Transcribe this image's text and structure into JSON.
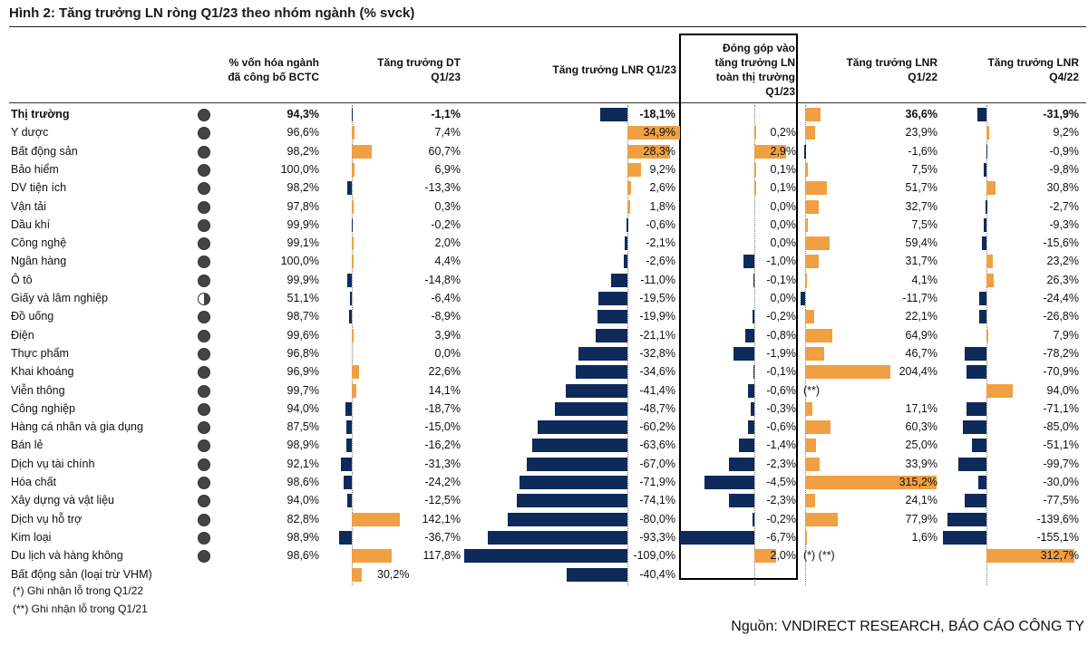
{
  "title": "Hình 2: Tăng trưởng LN ròng Q1/23 theo nhóm ngành (% svck)",
  "headers": {
    "cap": [
      "% vốn hóa ngành",
      "đã công bố BCTC"
    ],
    "rev": [
      "Tăng trưởng DT",
      "Q1/23"
    ],
    "lnr": [
      "Tăng trưởng LNR Q1/23"
    ],
    "contrib": [
      "Đóng góp vào",
      "tăng trưởng LN",
      "toàn thị trường",
      "Q1/23"
    ],
    "lnr_q122": [
      "Tăng trưởng LNR",
      "Q1/22"
    ],
    "lnr_q422": [
      "Tăng trưởng LNR",
      "Q4/22"
    ]
  },
  "footnotes": [
    "(*) Ghi nhận lỗ trong Q1/22",
    "(**) Ghi nhận lỗ trong Q1/21"
  ],
  "source": "Nguồn: VNDIRECT RESEARCH, BÁO CÁO CÔNG TY",
  "colors": {
    "positive": "#f0a042",
    "negative": "#0e2a5a"
  },
  "chart_data": {
    "type": "table",
    "columns": [
      "% vốn hóa ngành đã công bố BCTC",
      "Tăng trưởng DT Q1/23",
      "Tăng trưởng LNR Q1/23",
      "Đóng góp vào tăng trưởng LN toàn thị trường Q1/23",
      "Tăng trưởng LNR Q1/22",
      "Tăng trưởng LNR Q4/22"
    ],
    "rows": [
      {
        "name": "Thị trường",
        "bold": true,
        "icon": "full-circle-icon",
        "cap": "94,3%",
        "rev": -1.1,
        "rev_label": "-1,1%",
        "lnr": -18.1,
        "lnr_label": "-18,1%",
        "contrib": null,
        "contrib_label": "",
        "q122": 36.6,
        "q122_label": "36,6%",
        "q422": -31.9,
        "q422_label": "-31,9%"
      },
      {
        "name": "Y dược",
        "icon": "full-circle-icon",
        "cap": "96,6%",
        "rev": 7.4,
        "rev_label": "7,4%",
        "lnr": 34.9,
        "lnr_label": "34,9%",
        "contrib": 0.2,
        "contrib_label": "0,2%",
        "q122": 23.9,
        "q122_label": "23,9%",
        "q422": 9.2,
        "q422_label": "9,2%"
      },
      {
        "name": "Bất động sản",
        "icon": "full-circle-icon",
        "cap": "98,2%",
        "rev": 60.7,
        "rev_label": "60,7%",
        "lnr": 28.3,
        "lnr_label": "28,3%",
        "contrib": 2.9,
        "contrib_label": "2,9%",
        "q122": -1.6,
        "q122_label": "-1,6%",
        "q422": -0.9,
        "q422_label": "-0,9%"
      },
      {
        "name": "Bảo hiểm",
        "icon": "full-circle-icon",
        "cap": "100,0%",
        "rev": 6.9,
        "rev_label": "6,9%",
        "lnr": 9.2,
        "lnr_label": "9,2%",
        "contrib": 0.1,
        "contrib_label": "0,1%",
        "q122": 7.5,
        "q122_label": "7,5%",
        "q422": -9.8,
        "q422_label": "-9,8%"
      },
      {
        "name": "DV tiện ích",
        "icon": "full-circle-icon",
        "cap": "98,2%",
        "rev": -13.3,
        "rev_label": "-13,3%",
        "lnr": 2.6,
        "lnr_label": "2,6%",
        "contrib": 0.1,
        "contrib_label": "0,1%",
        "q122": 51.7,
        "q122_label": "51,7%",
        "q422": 30.8,
        "q422_label": "30,8%"
      },
      {
        "name": "Vận tải",
        "icon": "full-circle-icon",
        "cap": "97,8%",
        "rev": 0.3,
        "rev_label": "0,3%",
        "lnr": 1.8,
        "lnr_label": "1,8%",
        "contrib": 0.0,
        "contrib_label": "0,0%",
        "q122": 32.7,
        "q122_label": "32,7%",
        "q422": -2.7,
        "q422_label": "-2,7%"
      },
      {
        "name": "Dầu khí",
        "icon": "full-circle-icon",
        "cap": "99,9%",
        "rev": -0.2,
        "rev_label": "-0,2%",
        "lnr": -0.6,
        "lnr_label": "-0,6%",
        "contrib": 0.0,
        "contrib_label": "0,0%",
        "q122": 7.5,
        "q122_label": "7,5%",
        "q422": -9.3,
        "q422_label": "-9,3%"
      },
      {
        "name": "Công nghệ",
        "icon": "full-circle-icon",
        "cap": "99,1%",
        "rev": 2.0,
        "rev_label": "2,0%",
        "lnr": -2.1,
        "lnr_label": "-2,1%",
        "contrib": 0.0,
        "contrib_label": "0,0%",
        "q122": 59.4,
        "q122_label": "59,4%",
        "q422": -15.6,
        "q422_label": "-15,6%"
      },
      {
        "name": "Ngân hàng",
        "icon": "full-circle-icon",
        "cap": "100,0%",
        "rev": 4.4,
        "rev_label": "4,4%",
        "lnr": -2.6,
        "lnr_label": "-2,6%",
        "contrib": -1.0,
        "contrib_label": "-1,0%",
        "q122": 31.7,
        "q122_label": "31,7%",
        "q422": 23.2,
        "q422_label": "23,2%"
      },
      {
        "name": "Ô tô",
        "icon": "full-circle-icon",
        "cap": "99,9%",
        "rev": -14.8,
        "rev_label": "-14,8%",
        "lnr": -11.0,
        "lnr_label": "-11,0%",
        "contrib": -0.1,
        "contrib_label": "-0,1%",
        "q122": 4.1,
        "q122_label": "4,1%",
        "q422": 26.3,
        "q422_label": "26,3%"
      },
      {
        "name": "Giấy và lâm nghiệp",
        "icon": "half-circle-icon",
        "cap": "51,1%",
        "rev": -6.4,
        "rev_label": "-6,4%",
        "lnr": -19.5,
        "lnr_label": "-19,5%",
        "contrib": 0.0,
        "contrib_label": "0,0%",
        "q122": -11.7,
        "q122_label": "-11,7%",
        "q422": -24.4,
        "q422_label": "-24,4%"
      },
      {
        "name": "Đồ uống",
        "icon": "full-circle-icon",
        "cap": "98,7%",
        "rev": -8.9,
        "rev_label": "-8,9%",
        "lnr": -19.9,
        "lnr_label": "-19,9%",
        "contrib": -0.2,
        "contrib_label": "-0,2%",
        "q122": 22.1,
        "q122_label": "22,1%",
        "q422": -26.8,
        "q422_label": "-26,8%"
      },
      {
        "name": "Điện",
        "icon": "full-circle-icon",
        "cap": "99,6%",
        "rev": 3.9,
        "rev_label": "3,9%",
        "lnr": -21.1,
        "lnr_label": "-21,1%",
        "contrib": -0.8,
        "contrib_label": "-0,8%",
        "q122": 64.9,
        "q122_label": "64,9%",
        "q422": 7.9,
        "q422_label": "7,9%"
      },
      {
        "name": "Thực phẩm",
        "icon": "full-circle-icon",
        "cap": "96,8%",
        "rev": 0.0,
        "rev_label": "0,0%",
        "lnr": -32.8,
        "lnr_label": "-32,8%",
        "contrib": -1.9,
        "contrib_label": "-1,9%",
        "q122": 46.7,
        "q122_label": "46,7%",
        "q422": -78.2,
        "q422_label": "-78,2%"
      },
      {
        "name": "Khai khoáng",
        "icon": "full-circle-icon",
        "cap": "96,9%",
        "rev": 22.6,
        "rev_label": "22,6%",
        "lnr": -34.6,
        "lnr_label": "-34,6%",
        "contrib": -0.1,
        "contrib_label": "-0,1%",
        "q122": 204.4,
        "q122_label": "204,4%",
        "q422": -70.9,
        "q422_label": "-70,9%"
      },
      {
        "name": "Viễn thông",
        "icon": "full-circle-icon",
        "cap": "99,7%",
        "rev": 14.1,
        "rev_label": "14,1%",
        "lnr": -41.4,
        "lnr_label": "-41,4%",
        "contrib": -0.6,
        "contrib_label": "-0,6%",
        "q122": null,
        "q122_label": "(**)",
        "q122_left": true,
        "q422": 94.0,
        "q422_label": "94,0%"
      },
      {
        "name": "Công nghiệp",
        "icon": "full-circle-icon",
        "cap": "94,0%",
        "rev": -18.7,
        "rev_label": "-18,7%",
        "lnr": -48.7,
        "lnr_label": "-48,7%",
        "contrib": -0.3,
        "contrib_label": "-0,3%",
        "q122": 17.1,
        "q122_label": "17,1%",
        "q422": -71.1,
        "q422_label": "-71,1%"
      },
      {
        "name": "Hàng cá nhân và gia dụng",
        "icon": "full-circle-icon",
        "cap": "87,5%",
        "rev": -15.0,
        "rev_label": "-15,0%",
        "lnr": -60.2,
        "lnr_label": "-60,2%",
        "contrib": -0.6,
        "contrib_label": "-0,6%",
        "q122": 60.3,
        "q122_label": "60,3%",
        "q422": -85.0,
        "q422_label": "-85,0%"
      },
      {
        "name": "Bán lẻ",
        "icon": "full-circle-icon",
        "cap": "98,9%",
        "rev": -16.2,
        "rev_label": "-16,2%",
        "lnr": -63.6,
        "lnr_label": "-63,6%",
        "contrib": -1.4,
        "contrib_label": "-1,4%",
        "q122": 25.0,
        "q122_label": "25,0%",
        "q422": -51.1,
        "q422_label": "-51,1%"
      },
      {
        "name": "Dịch vụ tài chính",
        "icon": "full-circle-icon",
        "cap": "92,1%",
        "rev": -31.3,
        "rev_label": "-31,3%",
        "lnr": -67.0,
        "lnr_label": "-67,0%",
        "contrib": -2.3,
        "contrib_label": "-2,3%",
        "q122": 33.9,
        "q122_label": "33,9%",
        "q422": -99.7,
        "q422_label": "-99,7%"
      },
      {
        "name": "Hóa chất",
        "icon": "full-circle-icon",
        "cap": "98,6%",
        "rev": -24.2,
        "rev_label": "-24,2%",
        "lnr": -71.9,
        "lnr_label": "-71,9%",
        "contrib": -4.5,
        "contrib_label": "-4,5%",
        "q122": 315.2,
        "q122_label": "315,2%",
        "q422": -30.0,
        "q422_label": "-30,0%"
      },
      {
        "name": "Xây dựng và vật liệu",
        "icon": "full-circle-icon",
        "cap": "94,0%",
        "rev": -12.5,
        "rev_label": "-12,5%",
        "lnr": -74.1,
        "lnr_label": "-74,1%",
        "contrib": -2.3,
        "contrib_label": "-2,3%",
        "q122": 24.1,
        "q122_label": "24,1%",
        "q422": -77.5,
        "q422_label": "-77,5%"
      },
      {
        "name": "Dịch vụ hỗ trợ",
        "icon": "full-circle-icon",
        "cap": "82,8%",
        "rev": 142.1,
        "rev_label": "142,1%",
        "lnr": -80.0,
        "lnr_label": "-80,0%",
        "contrib": -0.2,
        "contrib_label": "-0,2%",
        "q122": 77.9,
        "q122_label": "77,9%",
        "q422": -139.6,
        "q422_label": "-139,6%"
      },
      {
        "name": "Kim loại",
        "icon": "full-circle-icon",
        "cap": "98,9%",
        "rev": -36.7,
        "rev_label": "-36,7%",
        "lnr": -93.3,
        "lnr_label": "-93,3%",
        "contrib": -6.7,
        "contrib_label": "-6,7%",
        "q122": 1.6,
        "q122_label": "1,6%",
        "q422": -155.1,
        "q422_label": "-155,1%"
      },
      {
        "name": "Du lịch và hàng không",
        "icon": "full-circle-icon",
        "cap": "98,6%",
        "rev": 117.8,
        "rev_label": "117,8%",
        "lnr": -109.0,
        "lnr_label": "-109,0%",
        "contrib": 2.0,
        "contrib_label": "2,0%",
        "q122": null,
        "q122_label": "(*) (**)",
        "q122_left": true,
        "q422": 312.7,
        "q422_label": "312,7%"
      },
      {
        "name": "Bất động sản (loại trừ VHM)",
        "icon": "",
        "cap": "",
        "rev": 30.2,
        "rev_label": "30,2%",
        "lnr": -40.4,
        "lnr_label": "-40,4%",
        "contrib": null,
        "contrib_label": "",
        "q122": null,
        "q122_label": "",
        "q422": null,
        "q422_label": ""
      }
    ]
  }
}
